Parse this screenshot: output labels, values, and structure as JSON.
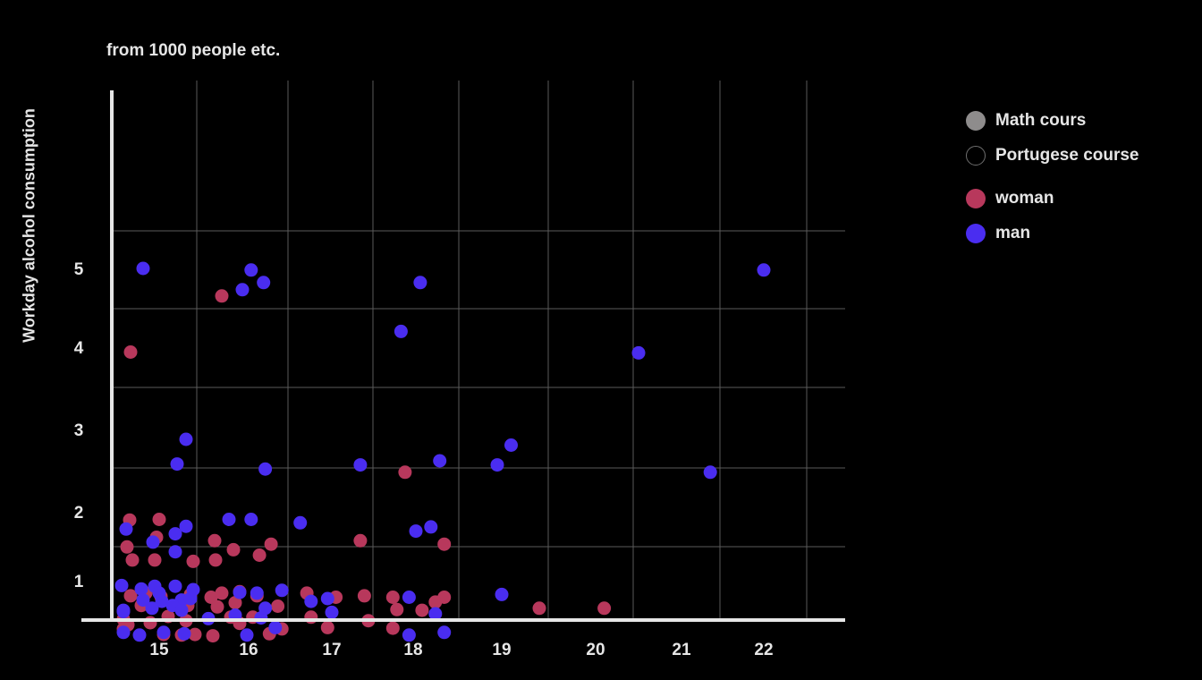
{
  "chart_data": {
    "type": "scatter",
    "title": "",
    "subtitle": "from 1000 people etc.",
    "xlabel": "",
    "ylabel": "Workday alcohol consumption",
    "x_ticks": [
      "15",
      "16",
      "17",
      "18",
      "19",
      "20",
      "21",
      "22"
    ],
    "y_ticks": [
      "1",
      "2",
      "3",
      "4",
      "5"
    ],
    "xlim": [
      14.5,
      23
    ],
    "ylim": [
      0.5,
      5.5
    ],
    "grid": true,
    "legend_placement": "right",
    "legend": [
      {
        "label": "Math cours",
        "swatch": "filled",
        "color": "#8e8c8c"
      },
      {
        "label": "Portugese course",
        "swatch": "outline",
        "color": "#000000",
        "border": "#6f6f6f"
      },
      {
        "label": "woman",
        "swatch": "filled",
        "color": "#b8385c"
      },
      {
        "label": "man",
        "swatch": "filled",
        "color": "#4a2df0"
      }
    ],
    "series": [
      {
        "name": "woman",
        "color": "#b8385c",
        "points": [
          [
            15.7,
            4.65
          ],
          [
            14.68,
            3.94
          ],
          [
            17.9,
            2.48
          ],
          [
            14.67,
            1.88
          ],
          [
            15.0,
            1.89
          ],
          [
            14.64,
            1.49
          ],
          [
            14.97,
            1.63
          ],
          [
            14.7,
            1.3
          ],
          [
            14.95,
            1.3
          ],
          [
            15.38,
            1.28
          ],
          [
            15.62,
            1.58
          ],
          [
            15.83,
            1.45
          ],
          [
            16.13,
            1.37
          ],
          [
            16.27,
            1.53
          ],
          [
            15.63,
            1.3
          ],
          [
            17.35,
            1.58
          ],
          [
            18.35,
            1.53
          ],
          [
            14.85,
            0.82
          ],
          [
            14.68,
            0.78
          ],
          [
            15.02,
            0.77
          ],
          [
            15.35,
            0.8
          ],
          [
            15.3,
            0.72
          ],
          [
            15.58,
            0.76
          ],
          [
            15.7,
            0.82
          ],
          [
            15.9,
            0.84
          ],
          [
            16.1,
            0.78
          ],
          [
            15.65,
            0.62
          ],
          [
            15.85,
            0.68
          ],
          [
            15.32,
            0.64
          ],
          [
            14.8,
            0.64
          ],
          [
            14.6,
            0.44
          ],
          [
            14.65,
            0.36
          ],
          [
            14.9,
            0.39
          ],
          [
            15.1,
            0.48
          ],
          [
            15.3,
            0.42
          ],
          [
            15.8,
            0.47
          ],
          [
            16.05,
            0.47
          ],
          [
            16.35,
            0.63
          ],
          [
            16.7,
            0.82
          ],
          [
            17.05,
            0.76
          ],
          [
            17.4,
            0.78
          ],
          [
            17.75,
            0.76
          ],
          [
            16.75,
            0.47
          ],
          [
            16.95,
            0.32
          ],
          [
            17.45,
            0.42
          ],
          [
            17.8,
            0.58
          ],
          [
            18.1,
            0.57
          ],
          [
            18.35,
            0.76
          ],
          [
            18.25,
            0.69
          ],
          [
            17.75,
            0.31
          ],
          [
            19.4,
            0.6
          ],
          [
            20.1,
            0.6
          ],
          [
            15.05,
            0.22
          ],
          [
            15.25,
            0.21
          ],
          [
            15.4,
            0.22
          ],
          [
            15.6,
            0.2
          ],
          [
            16.25,
            0.23
          ],
          [
            16.4,
            0.3
          ],
          [
            15.9,
            0.38
          ],
          [
            14.6,
            0.3
          ]
        ]
      },
      {
        "name": "man",
        "color": "#4a2df0",
        "points": [
          [
            14.82,
            5.0
          ],
          [
            16.03,
            4.98
          ],
          [
            16.18,
            4.82
          ],
          [
            15.93,
            4.73
          ],
          [
            18.08,
            4.82
          ],
          [
            17.85,
            4.2
          ],
          [
            22.0,
            4.98
          ],
          [
            20.5,
            3.93
          ],
          [
            21.35,
            2.48
          ],
          [
            19.1,
            2.81
          ],
          [
            18.95,
            2.57
          ],
          [
            18.3,
            2.62
          ],
          [
            17.35,
            2.57
          ],
          [
            15.3,
            2.88
          ],
          [
            15.2,
            2.58
          ],
          [
            16.2,
            2.52
          ],
          [
            14.63,
            1.75
          ],
          [
            14.93,
            1.56
          ],
          [
            15.18,
            1.68
          ],
          [
            15.3,
            1.79
          ],
          [
            15.18,
            1.42
          ],
          [
            15.78,
            1.89
          ],
          [
            16.03,
            1.89
          ],
          [
            16.62,
            1.84
          ],
          [
            18.03,
            1.72
          ],
          [
            18.2,
            1.78
          ],
          [
            19.0,
            0.8
          ],
          [
            14.58,
            0.93
          ],
          [
            14.8,
            0.88
          ],
          [
            14.95,
            0.92
          ],
          [
            15.18,
            0.92
          ],
          [
            14.82,
            0.72
          ],
          [
            15.03,
            0.7
          ],
          [
            15.25,
            0.72
          ],
          [
            15.0,
            0.82
          ],
          [
            15.35,
            0.74
          ],
          [
            15.9,
            0.83
          ],
          [
            16.1,
            0.82
          ],
          [
            16.4,
            0.86
          ],
          [
            16.75,
            0.7
          ],
          [
            16.95,
            0.74
          ],
          [
            17.95,
            0.76
          ],
          [
            14.6,
            0.55
          ],
          [
            14.92,
            0.6
          ],
          [
            15.15,
            0.64
          ],
          [
            15.25,
            0.57
          ],
          [
            15.55,
            0.45
          ],
          [
            15.85,
            0.5
          ],
          [
            16.15,
            0.46
          ],
          [
            16.2,
            0.6
          ],
          [
            17.0,
            0.54
          ],
          [
            18.25,
            0.52
          ],
          [
            14.6,
            0.25
          ],
          [
            14.78,
            0.21
          ],
          [
            15.05,
            0.25
          ],
          [
            15.28,
            0.23
          ],
          [
            15.98,
            0.21
          ],
          [
            16.32,
            0.32
          ],
          [
            17.95,
            0.21
          ],
          [
            18.35,
            0.25
          ],
          [
            14.6,
            0.57
          ],
          [
            15.38,
            0.87
          ]
        ]
      }
    ]
  }
}
